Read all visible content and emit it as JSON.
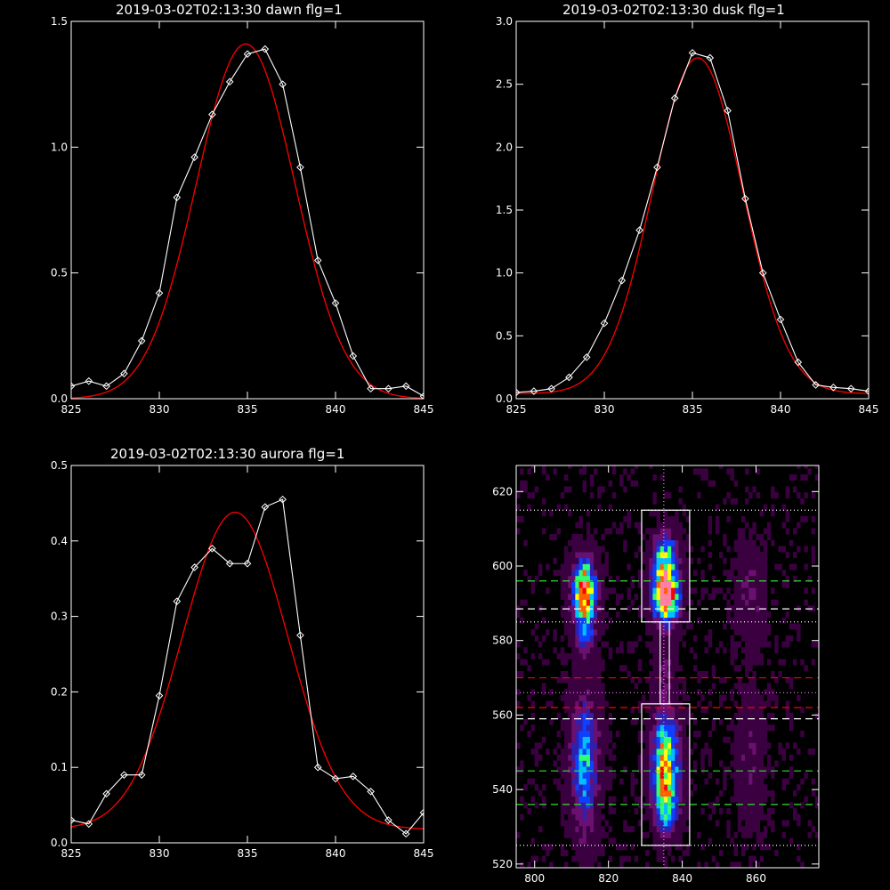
{
  "chart_data": [
    {
      "type": "line",
      "title": "2019-03-02T02:13:30 dawn flg=1",
      "xlim": [
        825,
        845
      ],
      "ylim": [
        0,
        1.5
      ],
      "xticks": [
        825,
        830,
        835,
        840,
        845
      ],
      "yticks": [
        0.0,
        0.5,
        1.0,
        1.5
      ],
      "ytick_labels": [
        "0.0",
        "0.5",
        "1.0",
        "1.5"
      ],
      "series": [
        {
          "role": "data",
          "color": "#ffffff",
          "marker": "diamond",
          "x": [
            825,
            826,
            827,
            828,
            829,
            830,
            831,
            832,
            833,
            834,
            835,
            836,
            837,
            838,
            839,
            840,
            841,
            842,
            843,
            844,
            845
          ],
          "y": [
            0.05,
            0.07,
            0.05,
            0.1,
            0.23,
            0.42,
            0.8,
            0.96,
            1.13,
            1.26,
            1.37,
            1.39,
            1.25,
            0.92,
            0.55,
            0.38,
            0.17,
            0.04,
            0.04,
            0.05,
            0.01
          ]
        },
        {
          "role": "fit",
          "color": "#ff0000",
          "gauss": {
            "amp": 1.41,
            "center": 834.9,
            "sigma": 2.8,
            "offset": 0.0
          }
        }
      ]
    },
    {
      "type": "line",
      "title": "2019-03-02T02:13:30 dusk flg=1",
      "xlim": [
        825,
        845
      ],
      "ylim": [
        0,
        3.0
      ],
      "xticks": [
        825,
        830,
        835,
        840,
        845
      ],
      "yticks": [
        0.0,
        0.5,
        1.0,
        1.5,
        2.0,
        2.5,
        3.0
      ],
      "ytick_labels": [
        "0.0",
        "0.5",
        "1.0",
        "1.5",
        "2.0",
        "2.5",
        "3.0"
      ],
      "series": [
        {
          "role": "data",
          "color": "#ffffff",
          "marker": "diamond",
          "x": [
            825,
            826,
            827,
            828,
            829,
            830,
            831,
            832,
            833,
            834,
            835,
            836,
            837,
            838,
            839,
            840,
            841,
            842,
            843,
            844,
            845
          ],
          "y": [
            0.05,
            0.06,
            0.08,
            0.17,
            0.33,
            0.6,
            0.94,
            1.34,
            1.84,
            2.39,
            2.75,
            2.71,
            2.29,
            1.59,
            1.0,
            0.63,
            0.29,
            0.11,
            0.09,
            0.08,
            0.06
          ]
        },
        {
          "role": "fit",
          "color": "#ff0000",
          "gauss": {
            "amp": 2.67,
            "center": 835.3,
            "sigma": 2.55,
            "offset": 0.04
          }
        }
      ]
    },
    {
      "type": "line",
      "title": "2019-03-02T02:13:30 aurora flg=1",
      "xlim": [
        825,
        845
      ],
      "ylim": [
        0,
        0.5
      ],
      "xticks": [
        825,
        830,
        835,
        840,
        845
      ],
      "yticks": [
        0.0,
        0.1,
        0.2,
        0.3,
        0.4,
        0.5
      ],
      "ytick_labels": [
        "0.0",
        "0.1",
        "0.2",
        "0.3",
        "0.4",
        "0.5"
      ],
      "series": [
        {
          "role": "data",
          "color": "#ffffff",
          "marker": "diamond",
          "x": [
            825,
            826,
            827,
            828,
            829,
            830,
            831,
            832,
            833,
            834,
            835,
            836,
            837,
            838,
            839,
            840,
            841,
            842,
            843,
            844,
            845
          ],
          "y": [
            0.03,
            0.025,
            0.065,
            0.09,
            0.09,
            0.195,
            0.32,
            0.365,
            0.39,
            0.37,
            0.37,
            0.445,
            0.455,
            0.275,
            0.1,
            0.085,
            0.088,
            0.068,
            0.03,
            0.012,
            0.04
          ]
        },
        {
          "role": "fit",
          "color": "#ff0000",
          "gauss": {
            "amp": 0.42,
            "center": 834.3,
            "sigma": 3.0,
            "offset": 0.018
          }
        }
      ]
    },
    {
      "type": "heatmap",
      "title": "",
      "xlim": [
        795,
        877
      ],
      "ylim": [
        519,
        627
      ],
      "xticks": [
        800,
        820,
        840,
        860
      ],
      "yticks": [
        520,
        540,
        560,
        580,
        600,
        620
      ],
      "colormap": [
        "#000000",
        "#3a0040",
        "#6a1070",
        "#3020b0",
        "#1040ff",
        "#00c0ff",
        "#30ff70",
        "#ffff00",
        "#ff6000",
        "#ff0000",
        "#ff80a0"
      ],
      "blobs": [
        {
          "x": 813,
          "y": 593,
          "sx": 2.3,
          "sy": 5.5,
          "amp": 0.85
        },
        {
          "x": 813,
          "y": 582,
          "sx": 2.0,
          "sy": 4.5,
          "amp": 0.35
        },
        {
          "x": 813,
          "y": 547,
          "sx": 2.6,
          "sy": 13.0,
          "amp": 0.5
        },
        {
          "x": 835,
          "y": 592,
          "sx": 2.6,
          "sy": 5.5,
          "amp": 1.0
        },
        {
          "x": 835,
          "y": 603,
          "sx": 2.2,
          "sy": 4.0,
          "amp": 0.45
        },
        {
          "x": 835,
          "y": 570,
          "sx": 2.0,
          "sy": 6.0,
          "amp": 0.18
        },
        {
          "x": 835,
          "y": 552,
          "sx": 2.6,
          "sy": 6.0,
          "amp": 0.55
        },
        {
          "x": 835,
          "y": 541,
          "sx": 2.6,
          "sy": 5.5,
          "amp": 0.62
        },
        {
          "x": 835,
          "y": 532,
          "sx": 2.3,
          "sy": 4.0,
          "amp": 0.35
        },
        {
          "x": 858,
          "y": 592,
          "sx": 2.6,
          "sy": 9.0,
          "amp": 0.18
        },
        {
          "x": 858,
          "y": 547,
          "sx": 2.6,
          "sy": 12.0,
          "amp": 0.15
        }
      ],
      "boxes": [
        {
          "x0": 829,
          "x1": 842,
          "y0": 585,
          "y1": 615,
          "color": "#ffffff"
        },
        {
          "x0": 829,
          "x1": 842,
          "y0": 525,
          "y1": 563,
          "color": "#ffffff"
        },
        {
          "x0": 834,
          "x1": 836.5,
          "y0": 563,
          "y1": 585,
          "color": "#ffffff"
        }
      ],
      "hlines": [
        {
          "y": 615,
          "color": "#ffffff",
          "style": "dotted"
        },
        {
          "y": 596,
          "color": "#33dd33",
          "style": "dashed"
        },
        {
          "y": 588.5,
          "color": "#ffffff",
          "style": "dashed"
        },
        {
          "y": 585,
          "color": "#ffffff",
          "style": "dotted"
        },
        {
          "y": 570,
          "color": "#ff0000",
          "style": "dashed"
        },
        {
          "y": 566,
          "color": "#ff80ff",
          "style": "dotted"
        },
        {
          "y": 562,
          "color": "#ff0000",
          "style": "dashed"
        },
        {
          "y": 559,
          "color": "#ffffff",
          "style": "dashed"
        },
        {
          "y": 545,
          "color": "#33dd33",
          "style": "dashed"
        },
        {
          "y": 536,
          "color": "#33dd33",
          "style": "dashed"
        },
        {
          "y": 525,
          "color": "#ffffff",
          "style": "dotted"
        }
      ],
      "vlines": [
        {
          "x": 835,
          "color": "#ff80ff",
          "style": "dotted"
        }
      ]
    }
  ]
}
